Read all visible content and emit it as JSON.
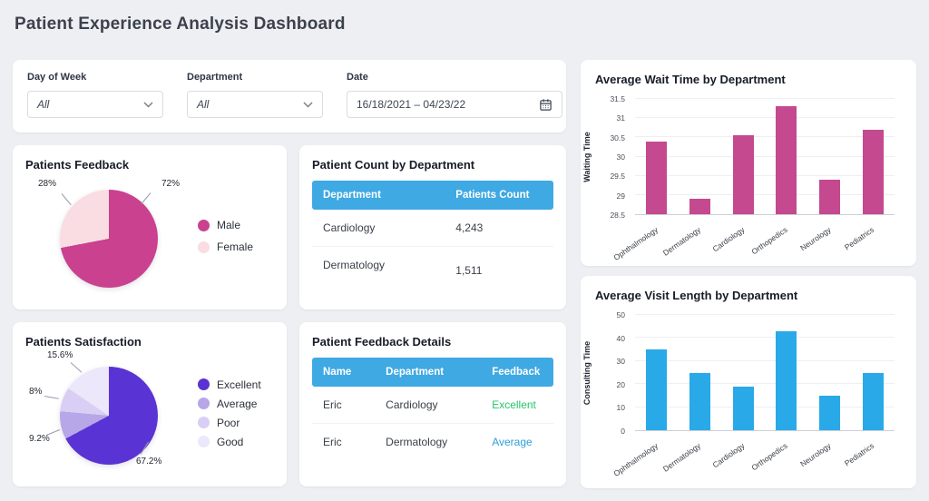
{
  "page": {
    "title": "Patient Experience Analysis Dashboard"
  },
  "filters": {
    "day_of_week": {
      "label": "Day of Week",
      "value": "All"
    },
    "department": {
      "label": "Department",
      "value": "All"
    },
    "date": {
      "label": "Date",
      "value": "16/18/2021 – 04/23/22"
    }
  },
  "colors": {
    "table_header": "#3fa9e3",
    "feedback_excellent_text": "#27c46a",
    "feedback_average_text": "#2f9fd8",
    "male": "#c9418f",
    "female": "#f9dde2",
    "excellent": "#5a33d4",
    "average": "#b7a6e8",
    "poor": "#d9cef3",
    "good": "#ece7fa",
    "wait_bars": "#c4498e",
    "visit_bars": "#29a9e8"
  },
  "chart_data": [
    {
      "id": "patients-feedback",
      "type": "pie",
      "title": "Patients Feedback",
      "labels": [
        "Male",
        "Female"
      ],
      "values": [
        72,
        28
      ],
      "slice_labels": [
        "72%",
        "28%"
      ],
      "colors": [
        "#c9418f",
        "#f9dde2"
      ],
      "legend_position": "right"
    },
    {
      "id": "patient-count-by-department",
      "type": "table",
      "title": "Patient Count by Department",
      "headers": [
        "Department",
        "Patients Count"
      ],
      "rows": [
        [
          "Cardiology",
          "4,243"
        ],
        [
          "Dermatology",
          "1,511"
        ]
      ]
    },
    {
      "id": "patients-satisfaction",
      "type": "pie",
      "title": "Patients Satisfaction",
      "labels": [
        "Excellent",
        "Average",
        "Poor",
        "Good"
      ],
      "values": [
        67.2,
        9.2,
        8,
        15.6
      ],
      "slice_labels": [
        "67.2%",
        "9.2%",
        "8%",
        "15.6%"
      ],
      "colors": [
        "#5a33d4",
        "#b7a6e8",
        "#d9cef3",
        "#ece7fa"
      ],
      "legend_position": "right"
    },
    {
      "id": "patient-feedback-details",
      "type": "table",
      "title": "Patient Feedback Details",
      "headers": [
        "Name",
        "Department",
        "Feedback"
      ],
      "rows": [
        [
          "Eric",
          "Cardiology",
          "Excellent"
        ],
        [
          "Eric",
          "Dermatology",
          "Average"
        ]
      ]
    },
    {
      "id": "avg-wait-time-by-department",
      "type": "bar",
      "title": "Average Wait Time by Department",
      "categories": [
        "Ophthalmology",
        "Dermatology",
        "Cardiology",
        "Orthopedics",
        "Neurology",
        "Pediatrics"
      ],
      "values": [
        30.4,
        28.9,
        30.55,
        31.3,
        29.4,
        30.7
      ],
      "xlabel": "",
      "ylabel": "Waiting Time",
      "ylim": [
        28.5,
        31.5
      ],
      "yticks": [
        28.5,
        29,
        29.5,
        30,
        30.5,
        31,
        31.5
      ],
      "grid": true,
      "color": "#c4498e"
    },
    {
      "id": "avg-visit-length-by-department",
      "type": "bar",
      "title": "Average Visit Length by Department",
      "categories": [
        "Ophthalmology",
        "Dermatology",
        "Cardiology",
        "Orthopedics",
        "Neurology",
        "Pediatrics"
      ],
      "values": [
        35,
        25,
        19,
        43,
        15,
        25
      ],
      "xlabel": "",
      "ylabel": "Consulting Time",
      "ylim": [
        0,
        50
      ],
      "yticks": [
        0,
        10,
        20,
        30,
        40,
        50
      ],
      "grid": true,
      "color": "#29a9e8"
    }
  ]
}
